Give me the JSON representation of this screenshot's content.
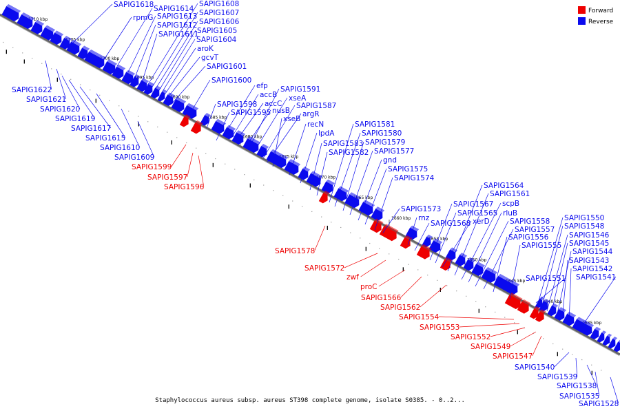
{
  "caption": "Staphylococcus aureus subsp. aureus ST398 complete genome, isolate S0385. - 0..2...",
  "colors": {
    "forward": "#ee0000",
    "reverse": "#0a0aee",
    "backbone": "#666666"
  },
  "legend": [
    {
      "label": "Forward",
      "color": "#ee0000"
    },
    {
      "label": "Reverse",
      "color": "#0a0aee"
    }
  ],
  "ticks": [
    "1710 kbp",
    "1705 kbp",
    "1700 kbp",
    "1695 kbp",
    "1690 kbp",
    "1685 kbp",
    "1680 kbp",
    "1675 kbp",
    "1670 kbp",
    "1665 kbp",
    "1660 kbp",
    "1655 kbp",
    "1650 kbp",
    "1645 kbp",
    "1640 kbp",
    "1635 kbp"
  ],
  "genes": [
    {
      "name": "SAPIG1618",
      "strand": "reverse"
    },
    {
      "name": "rpmG",
      "strand": "reverse"
    },
    {
      "name": "SAPIG1614",
      "strand": "reverse"
    },
    {
      "name": "SAPIG1613",
      "strand": "reverse"
    },
    {
      "name": "SAPIG1612",
      "strand": "reverse"
    },
    {
      "name": "SAPIG1611",
      "strand": "reverse"
    },
    {
      "name": "SAPIG1608",
      "strand": "reverse"
    },
    {
      "name": "SAPIG1607",
      "strand": "reverse"
    },
    {
      "name": "SAPIG1606",
      "strand": "reverse"
    },
    {
      "name": "SAPIG1605",
      "strand": "reverse"
    },
    {
      "name": "SAPIG1604",
      "strand": "reverse"
    },
    {
      "name": "aroK",
      "strand": "reverse"
    },
    {
      "name": "gcvT",
      "strand": "reverse"
    },
    {
      "name": "SAPIG1601",
      "strand": "reverse"
    },
    {
      "name": "SAPIG1600",
      "strand": "reverse"
    },
    {
      "name": "SAPIG1622",
      "strand": "reverse"
    },
    {
      "name": "SAPIG1621",
      "strand": "reverse"
    },
    {
      "name": "SAPIG1620",
      "strand": "reverse"
    },
    {
      "name": "SAPIG1619",
      "strand": "reverse"
    },
    {
      "name": "SAPIG1617",
      "strand": "reverse"
    },
    {
      "name": "SAPIG1615",
      "strand": "reverse"
    },
    {
      "name": "SAPIG1610",
      "strand": "reverse"
    },
    {
      "name": "SAPIG1609",
      "strand": "reverse"
    },
    {
      "name": "SAPIG1599",
      "strand": "forward"
    },
    {
      "name": "SAPIG1597",
      "strand": "forward"
    },
    {
      "name": "SAPIG1596",
      "strand": "forward"
    },
    {
      "name": "SAPIG1598",
      "strand": "reverse"
    },
    {
      "name": "efp",
      "strand": "reverse"
    },
    {
      "name": "accB",
      "strand": "reverse"
    },
    {
      "name": "accC",
      "strand": "reverse"
    },
    {
      "name": "SAPIG1595",
      "strand": "reverse"
    },
    {
      "name": "nusB",
      "strand": "reverse"
    },
    {
      "name": "SAPIG1591",
      "strand": "reverse"
    },
    {
      "name": "xseA",
      "strand": "reverse"
    },
    {
      "name": "SAPIG1587",
      "strand": "reverse"
    },
    {
      "name": "argR",
      "strand": "reverse"
    },
    {
      "name": "xseB",
      "strand": "reverse"
    },
    {
      "name": "recN",
      "strand": "reverse"
    },
    {
      "name": "lpdA",
      "strand": "reverse"
    },
    {
      "name": "SAPIG1583",
      "strand": "reverse"
    },
    {
      "name": "SAPIG1582",
      "strand": "reverse"
    },
    {
      "name": "SAPIG1581",
      "strand": "reverse"
    },
    {
      "name": "SAPIG1580",
      "strand": "reverse"
    },
    {
      "name": "SAPIG1579",
      "strand": "reverse"
    },
    {
      "name": "SAPIG1577",
      "strand": "reverse"
    },
    {
      "name": "gnd",
      "strand": "reverse"
    },
    {
      "name": "SAPIG1575",
      "strand": "reverse"
    },
    {
      "name": "SAPIG1574",
      "strand": "reverse"
    },
    {
      "name": "SAPIG1578",
      "strand": "forward"
    },
    {
      "name": "SAPIG1573",
      "strand": "reverse"
    },
    {
      "name": "rnz",
      "strand": "reverse"
    },
    {
      "name": "SAPIG1568",
      "strand": "reverse"
    },
    {
      "name": "SAPIG1567",
      "strand": "reverse"
    },
    {
      "name": "SAPIG1565",
      "strand": "reverse"
    },
    {
      "name": "xerD",
      "strand": "reverse"
    },
    {
      "name": "SAPIG1564",
      "strand": "reverse"
    },
    {
      "name": "SAPIG1561",
      "strand": "reverse"
    },
    {
      "name": "scpB",
      "strand": "reverse"
    },
    {
      "name": "rluB",
      "strand": "reverse"
    },
    {
      "name": "SAPIG1558",
      "strand": "reverse"
    },
    {
      "name": "SAPIG1557",
      "strand": "reverse"
    },
    {
      "name": "SAPIG1556",
      "strand": "reverse"
    },
    {
      "name": "SAPIG1555",
      "strand": "reverse"
    },
    {
      "name": "SAPIG1572",
      "strand": "forward"
    },
    {
      "name": "zwf",
      "strand": "forward"
    },
    {
      "name": "proC",
      "strand": "forward"
    },
    {
      "name": "SAPIG1566",
      "strand": "forward"
    },
    {
      "name": "SAPIG1562",
      "strand": "forward"
    },
    {
      "name": "SAPIG1554",
      "strand": "forward"
    },
    {
      "name": "SAPIG1553",
      "strand": "forward"
    },
    {
      "name": "SAPIG1552",
      "strand": "forward"
    },
    {
      "name": "SAPIG1549",
      "strand": "forward"
    },
    {
      "name": "SAPIG1547",
      "strand": "forward"
    },
    {
      "name": "SAPIG1551",
      "strand": "reverse"
    },
    {
      "name": "SAPIG1550",
      "strand": "reverse"
    },
    {
      "name": "SAPIG1548",
      "strand": "reverse"
    },
    {
      "name": "SAPIG1546",
      "strand": "reverse"
    },
    {
      "name": "SAPIG1545",
      "strand": "reverse"
    },
    {
      "name": "SAPIG1544",
      "strand": "reverse"
    },
    {
      "name": "SAPIG1543",
      "strand": "reverse"
    },
    {
      "name": "SAPIG1542",
      "strand": "reverse"
    },
    {
      "name": "SAPIG1541",
      "strand": "reverse"
    },
    {
      "name": "SAPIG1540",
      "strand": "reverse"
    },
    {
      "name": "SAPIG1539",
      "strand": "reverse"
    },
    {
      "name": "SAPIG1538",
      "strand": "reverse"
    },
    {
      "name": "SAPIG1535",
      "strand": "reverse"
    },
    {
      "name": "SAPIG1528",
      "strand": "reverse"
    }
  ]
}
